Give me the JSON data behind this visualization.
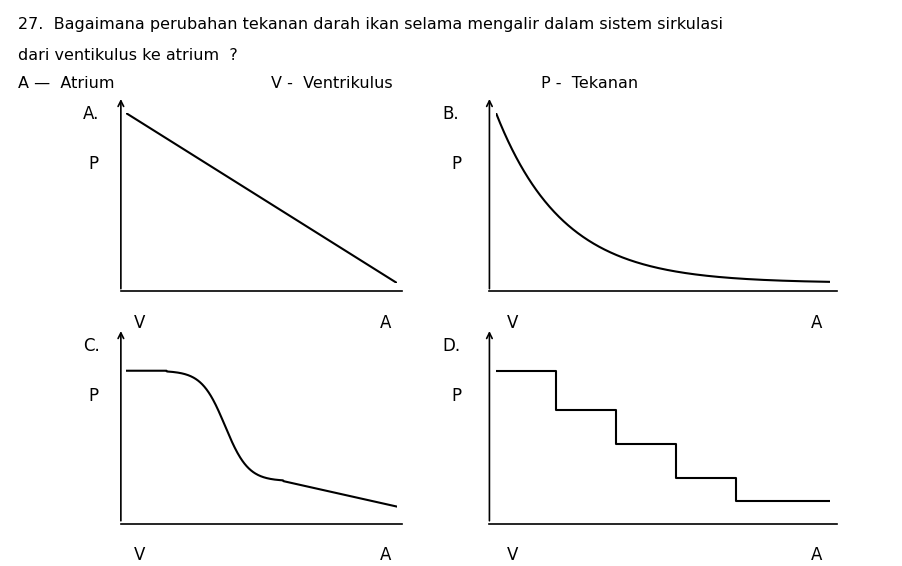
{
  "title_line1": "27.  Bagaimana perubahan tekanan darah ikan selama mengalir dalam sistem sirkulasi",
  "title_line2": "dari ventikulus ke atrium  ?",
  "legend_A": "A —  Atrium",
  "legend_V": "V -  Ventrikulus",
  "legend_P": "P -  Tekanan",
  "graphs": [
    {
      "label": "A.",
      "type": "linear_decrease"
    },
    {
      "label": "B.",
      "type": "exponential_decrease"
    },
    {
      "label": "C.",
      "type": "step_decrease_smooth"
    },
    {
      "label": "D.",
      "type": "step_decrease_staircase"
    }
  ],
  "ax_positions": {
    "A": [
      0.14,
      0.5,
      0.3,
      0.3
    ],
    "B": [
      0.55,
      0.5,
      0.37,
      0.3
    ],
    "C": [
      0.14,
      0.09,
      0.3,
      0.3
    ],
    "D": [
      0.55,
      0.09,
      0.37,
      0.3
    ]
  },
  "bg_color": "#ffffff",
  "line_color": "#000000",
  "title_fontsize": 11.5,
  "label_fontsize": 12
}
